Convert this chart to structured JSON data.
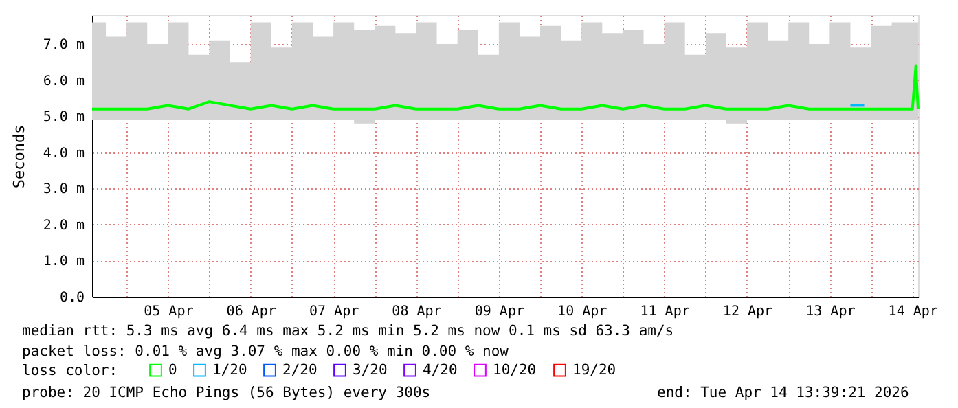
{
  "chart_data": {
    "type": "line",
    "ylabel": "Seconds",
    "legend_title": "loss color:",
    "legend": "bottom",
    "grid": true,
    "marker": "none",
    "line_style": "solid",
    "xlim": [
      "2026-04-04T14:00",
      "2026-04-14T13:39"
    ],
    "xticks": [
      {
        "value": "2026-04-05T00:00",
        "label": null
      },
      {
        "value": "2026-04-05T12:00",
        "label": "05 Apr"
      },
      {
        "value": "2026-04-06T00:00",
        "label": null
      },
      {
        "value": "2026-04-06T12:00",
        "label": "06 Apr"
      },
      {
        "value": "2026-04-07T00:00",
        "label": null
      },
      {
        "value": "2026-04-07T12:00",
        "label": "07 Apr"
      },
      {
        "value": "2026-04-08T00:00",
        "label": null
      },
      {
        "value": "2026-04-08T12:00",
        "label": "08 Apr"
      },
      {
        "value": "2026-04-09T00:00",
        "label": null
      },
      {
        "value": "2026-04-09T12:00",
        "label": "09 Apr"
      },
      {
        "value": "2026-04-10T00:00",
        "label": null
      },
      {
        "value": "2026-04-10T12:00",
        "label": "10 Apr"
      },
      {
        "value": "2026-04-11T00:00",
        "label": null
      },
      {
        "value": "2026-04-11T12:00",
        "label": "11 Apr"
      },
      {
        "value": "2026-04-12T00:00",
        "label": null
      },
      {
        "value": "2026-04-12T12:00",
        "label": "12 Apr"
      },
      {
        "value": "2026-04-13T00:00",
        "label": null
      },
      {
        "value": "2026-04-13T12:00",
        "label": "13 Apr"
      },
      {
        "value": "2026-04-14T00:00",
        "label": null
      },
      {
        "value": "2026-04-14T12:00",
        "label": "14 Apr"
      }
    ],
    "ylim": [
      0,
      7.8
    ],
    "yticks": [
      {
        "value": 0,
        "label": "0.0"
      },
      {
        "value": 1,
        "label": "1.0 m"
      },
      {
        "value": 2,
        "label": "2.0 m"
      },
      {
        "value": 3,
        "label": "3.0 m"
      },
      {
        "value": 4,
        "label": "4.0 m"
      },
      {
        "value": 5,
        "label": "5.0 m"
      },
      {
        "value": 6,
        "label": "6.0 m"
      },
      {
        "value": 7,
        "label": "7.0 m"
      }
    ],
    "x": [
      "2026-04-04T14:00",
      "2026-04-04T18:00",
      "2026-04-05T00:00",
      "2026-04-05T06:00",
      "2026-04-05T12:00",
      "2026-04-05T18:00",
      "2026-04-06T00:00",
      "2026-04-06T06:00",
      "2026-04-06T12:00",
      "2026-04-06T18:00",
      "2026-04-07T00:00",
      "2026-04-07T06:00",
      "2026-04-07T12:00",
      "2026-04-07T18:00",
      "2026-04-08T00:00",
      "2026-04-08T06:00",
      "2026-04-08T12:00",
      "2026-04-08T18:00",
      "2026-04-09T00:00",
      "2026-04-09T06:00",
      "2026-04-09T12:00",
      "2026-04-09T18:00",
      "2026-04-10T00:00",
      "2026-04-10T06:00",
      "2026-04-10T12:00",
      "2026-04-10T18:00",
      "2026-04-11T00:00",
      "2026-04-11T06:00",
      "2026-04-11T12:00",
      "2026-04-11T18:00",
      "2026-04-12T00:00",
      "2026-04-12T06:00",
      "2026-04-12T12:00",
      "2026-04-12T18:00",
      "2026-04-13T00:00",
      "2026-04-13T06:00",
      "2026-04-13T12:00",
      "2026-04-13T18:00",
      "2026-04-14T00:00",
      "2026-04-14T06:00",
      "2026-04-14T12:00",
      "2026-04-14T13:00",
      "2026-04-14T13:20",
      "2026-04-14T13:39"
    ],
    "series": [
      {
        "name": "0",
        "color": "#00ff00",
        "values": [
          5.2,
          5.2,
          5.2,
          5.2,
          5.3,
          5.2,
          5.4,
          5.3,
          5.2,
          5.3,
          5.2,
          5.3,
          5.2,
          5.2,
          5.2,
          5.3,
          5.2,
          5.2,
          5.2,
          5.3,
          5.2,
          5.2,
          5.3,
          5.2,
          5.2,
          5.3,
          5.2,
          5.3,
          5.2,
          5.2,
          5.3,
          5.2,
          5.2,
          5.2,
          5.3,
          5.2,
          5.2,
          5.2,
          5.2,
          5.2,
          5.2,
          6.4,
          5.7,
          5.2
        ],
        "lower": [
          4.9,
          4.9,
          4.9,
          4.9,
          4.9,
          4.9,
          4.9,
          4.9,
          4.9,
          4.9,
          4.9,
          4.9,
          4.9,
          4.8,
          4.9,
          4.9,
          4.9,
          4.9,
          4.9,
          4.9,
          4.9,
          4.9,
          4.9,
          4.9,
          4.9,
          4.9,
          4.9,
          4.9,
          4.9,
          4.9,
          4.9,
          4.8,
          4.9,
          4.9,
          4.9,
          4.9,
          4.9,
          4.9,
          4.9,
          4.9,
          4.9,
          4.9,
          4.9,
          4.9
        ],
        "upper": [
          7.6,
          7.2,
          7.6,
          7.0,
          7.6,
          6.7,
          7.1,
          6.5,
          7.6,
          6.9,
          7.6,
          7.2,
          7.6,
          7.4,
          7.5,
          7.3,
          7.6,
          7.0,
          7.4,
          6.7,
          7.6,
          7.2,
          7.5,
          7.1,
          7.6,
          7.3,
          7.4,
          7.0,
          7.6,
          6.7,
          7.3,
          6.9,
          7.6,
          7.1,
          7.6,
          7.0,
          7.6,
          6.9,
          7.5,
          7.6,
          7.6,
          7.6,
          7.6,
          7.2
        ]
      },
      {
        "name": "1/20",
        "color": "#00b8ff",
        "x": [
          "2026-04-13T18:00",
          "2026-04-13T22:00"
        ],
        "values": [
          5.3,
          5.3
        ]
      },
      {
        "name": "2/20",
        "color": "#0059ff",
        "values": [
          null,
          null,
          null,
          null,
          null,
          null,
          null,
          null,
          null,
          null,
          null,
          null,
          null,
          null,
          null,
          null,
          null,
          null,
          null,
          null,
          null,
          null,
          null,
          null,
          null,
          null,
          null,
          null,
          null,
          null,
          null,
          null,
          null,
          null,
          null,
          null,
          null,
          null,
          null,
          null,
          null,
          null,
          null,
          null
        ]
      },
      {
        "name": "3/20",
        "color": "#5e00ff",
        "values": [
          null,
          null,
          null,
          null,
          null,
          null,
          null,
          null,
          null,
          null,
          null,
          null,
          null,
          null,
          null,
          null,
          null,
          null,
          null,
          null,
          null,
          null,
          null,
          null,
          null,
          null,
          null,
          null,
          null,
          null,
          null,
          null,
          null,
          null,
          null,
          null,
          null,
          null,
          null,
          null,
          null,
          null,
          null,
          null
        ]
      },
      {
        "name": "4/20",
        "color": "#7e00ff",
        "values": [
          null,
          null,
          null,
          null,
          null,
          null,
          null,
          null,
          null,
          null,
          null,
          null,
          null,
          null,
          null,
          null,
          null,
          null,
          null,
          null,
          null,
          null,
          null,
          null,
          null,
          null,
          null,
          null,
          null,
          null,
          null,
          null,
          null,
          null,
          null,
          null,
          null,
          null,
          null,
          null,
          null,
          null,
          null,
          null
        ]
      },
      {
        "name": "10/20",
        "color": "#dd00ff",
        "values": [
          null,
          null,
          null,
          null,
          null,
          null,
          null,
          null,
          null,
          null,
          null,
          null,
          null,
          null,
          null,
          null,
          null,
          null,
          null,
          null,
          null,
          null,
          null,
          null,
          null,
          null,
          null,
          null,
          null,
          null,
          null,
          null,
          null,
          null,
          null,
          null,
          null,
          null,
          null,
          null,
          null,
          null,
          null,
          null
        ]
      },
      {
        "name": "19/20",
        "color": "#ff0000",
        "values": [
          null,
          null,
          null,
          null,
          null,
          null,
          null,
          null,
          null,
          null,
          null,
          null,
          null,
          null,
          null,
          null,
          null,
          null,
          null,
          null,
          null,
          null,
          null,
          null,
          null,
          null,
          null,
          null,
          null,
          null,
          null,
          null,
          null,
          null,
          null,
          null,
          null,
          null,
          null,
          null,
          null,
          null,
          null,
          null
        ]
      }
    ],
    "annotations": [
      "median rtt:  5.3 ms avg  6.4 ms max  5.2 ms min  5.2 ms now  0.1 ms sd  63.3   am/s",
      "packet loss: 0.01 % avg  3.07 % max  0.00 % min  0.00 % now",
      "probe:       20 ICMP Echo Pings (56 Bytes) every 300s",
      "end: Tue Apr 14 13:39:21 2026"
    ]
  }
}
